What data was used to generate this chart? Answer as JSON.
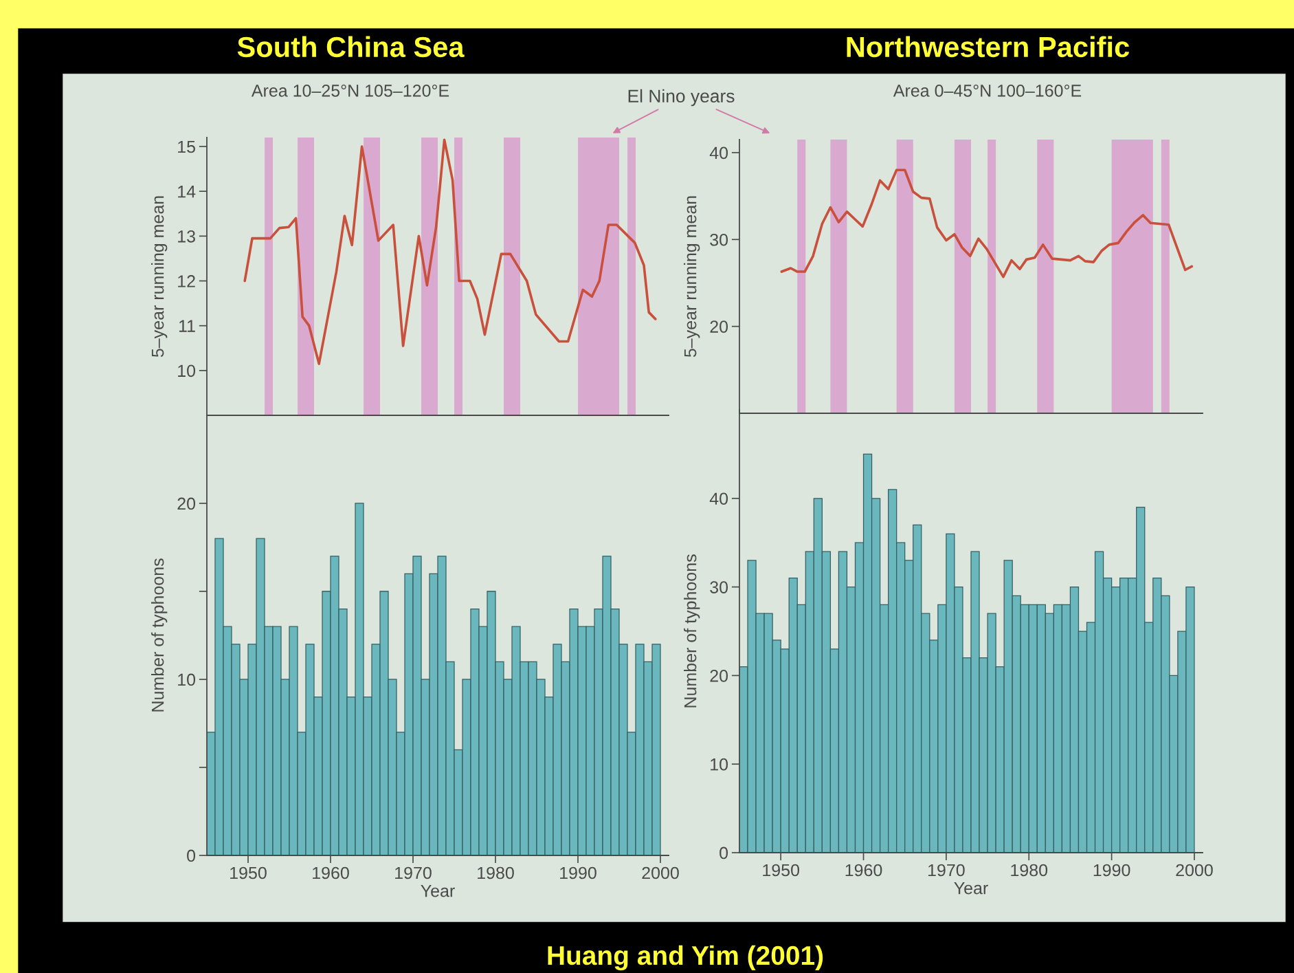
{
  "chart_data": [
    {
      "type": "line",
      "title": "South China Sea",
      "subtitle": "Area 10–25°N 105–120°E",
      "ylabel": "5–year running mean",
      "x": [
        1949.6,
        1950.5,
        1952.7,
        1953.8,
        1954.9,
        1955.8,
        1956.6,
        1957.4,
        1958.6,
        1960.7,
        1961.7,
        1962.6,
        1963.8,
        1965.8,
        1967.6,
        1968.8,
        1970.7,
        1971.7,
        1972.8,
        1973.8,
        1974.8,
        1975.6,
        1976.9,
        1977.8,
        1978.7,
        1980.7,
        1981.8,
        1983.8,
        1984.9,
        1987.7,
        1988.8,
        1990.6,
        1991.7,
        1992.6,
        1993.7,
        1994.7,
        1996.9,
        1998.0,
        1998.6,
        1999.4
      ],
      "series": [
        {
          "color": "#c8503c",
          "values": [
            12.0,
            12.95,
            12.95,
            13.18,
            13.2,
            13.4,
            11.2,
            11.0,
            10.15,
            12.2,
            13.45,
            12.8,
            15.0,
            12.9,
            13.25,
            10.55,
            13.0,
            11.9,
            13.2,
            15.15,
            14.25,
            12.0,
            12.0,
            11.6,
            10.8,
            12.6,
            12.6,
            12.0,
            11.25,
            10.65,
            10.65,
            11.8,
            11.65,
            12.0,
            13.25,
            13.25,
            12.85,
            12.35,
            11.3,
            11.15
          ]
        }
      ],
      "xlim": [
        1945,
        2001
      ],
      "ylim": [
        9,
        15.2
      ],
      "yticks": [
        10,
        11,
        12,
        13,
        14,
        15
      ],
      "tick_labels": "y",
      "bands": [
        {
          "axis": "x",
          "from": 1952,
          "to": 1953,
          "color": "#d9a9cf"
        },
        {
          "axis": "x",
          "from": 1956,
          "to": 1958,
          "color": "#d9a9cf"
        },
        {
          "axis": "x",
          "from": 1964,
          "to": 1966,
          "color": "#d9a9cf"
        },
        {
          "axis": "x",
          "from": 1971,
          "to": 1973,
          "color": "#d9a9cf"
        },
        {
          "axis": "x",
          "from": 1975,
          "to": 1976,
          "color": "#d9a9cf"
        },
        {
          "axis": "x",
          "from": 1981,
          "to": 1983,
          "color": "#d9a9cf"
        },
        {
          "axis": "x",
          "from": 1990,
          "to": 1995,
          "color": "#d9a9cf"
        },
        {
          "axis": "x",
          "from": 1996,
          "to": 1997,
          "color": "#d9a9cf"
        }
      ],
      "annotations": [
        "El Nino years",
        "Huang and Yim (2001)"
      ]
    },
    {
      "type": "line",
      "title": "Northwestern Pacific",
      "subtitle": "Area 0–45°N 100–160°E",
      "ylabel": "5–year running mean",
      "x": [
        1950.1,
        1951.2,
        1952.0,
        1952.9,
        1953.9,
        1955.0,
        1956.0,
        1957.0,
        1958.0,
        1959.0,
        1959.9,
        1961.0,
        1962.0,
        1963.0,
        1964.0,
        1965.0,
        1966.0,
        1967.0,
        1968.0,
        1968.9,
        1970.0,
        1971.0,
        1971.9,
        1972.9,
        1973.9,
        1974.9,
        1975.9,
        1976.9,
        1977.9,
        1978.9,
        1979.7,
        1980.7,
        1981.7,
        1982.8,
        1985.0,
        1986.0,
        1986.8,
        1987.8,
        1988.8,
        1989.7,
        1990.8,
        1991.8,
        1992.8,
        1993.8,
        1994.7,
        1996.9,
        1998.9,
        1999.7
      ],
      "series": [
        {
          "color": "#c8503c",
          "values": [
            26.3,
            26.7,
            26.3,
            26.3,
            28.1,
            31.8,
            33.7,
            32.0,
            33.2,
            32.3,
            31.5,
            34.1,
            36.8,
            35.8,
            38.0,
            38.0,
            35.5,
            34.8,
            34.7,
            31.4,
            29.9,
            30.6,
            29.1,
            28.1,
            30.1,
            28.9,
            27.3,
            25.7,
            27.6,
            26.6,
            27.7,
            27.9,
            29.4,
            27.8,
            27.6,
            28.1,
            27.5,
            27.4,
            28.7,
            29.4,
            29.6,
            30.9,
            32.0,
            32.8,
            31.9,
            31.7,
            26.5,
            26.9
          ]
        }
      ],
      "xlim": [
        1945,
        2001
      ],
      "ylim": [
        10,
        41.5
      ],
      "yticks": [
        20,
        30,
        40
      ],
      "tick_labels": "y",
      "bands": [
        {
          "axis": "x",
          "from": 1952,
          "to": 1953,
          "color": "#d9a9cf"
        },
        {
          "axis": "x",
          "from": 1956,
          "to": 1958,
          "color": "#d9a9cf"
        },
        {
          "axis": "x",
          "from": 1964,
          "to": 1966,
          "color": "#d9a9cf"
        },
        {
          "axis": "x",
          "from": 1971,
          "to": 1973,
          "color": "#d9a9cf"
        },
        {
          "axis": "x",
          "from": 1975,
          "to": 1976,
          "color": "#d9a9cf"
        },
        {
          "axis": "x",
          "from": 1981,
          "to": 1983,
          "color": "#d9a9cf"
        },
        {
          "axis": "x",
          "from": 1990,
          "to": 1995,
          "color": "#d9a9cf"
        },
        {
          "axis": "x",
          "from": 1996,
          "to": 1997,
          "color": "#d9a9cf"
        }
      ]
    },
    {
      "type": "histogram",
      "xlabel": "Year",
      "ylabel": "Number of typhoons",
      "color": "#6ab7bd",
      "bins": [
        1945,
        1946,
        1947,
        1948,
        1949,
        1950,
        1951,
        1952,
        1953,
        1954,
        1955,
        1956,
        1957,
        1958,
        1959,
        1960,
        1961,
        1962,
        1963,
        1964,
        1965,
        1966,
        1967,
        1968,
        1969,
        1970,
        1971,
        1972,
        1973,
        1974,
        1975,
        1976,
        1977,
        1978,
        1979,
        1980,
        1981,
        1982,
        1983,
        1984,
        1985,
        1986,
        1987,
        1988,
        1989,
        1990,
        1991,
        1992,
        1993,
        1994,
        1995,
        1996,
        1997,
        1998,
        1999,
        2000
      ],
      "values": [
        7,
        18,
        13,
        12,
        10,
        12,
        18,
        13,
        13,
        10,
        13,
        7,
        12,
        9,
        15,
        17,
        14,
        9,
        20,
        9,
        12,
        15,
        10,
        7,
        16,
        17,
        10,
        16,
        17,
        11,
        6,
        10,
        14,
        13,
        15,
        11,
        10,
        13,
        11,
        11,
        10,
        9,
        12,
        11,
        14,
        13,
        13,
        14,
        17,
        14,
        12,
        7,
        12,
        11,
        12
      ],
      "xlim": [
        1945,
        2001
      ],
      "xticks": [
        1950,
        1960,
        1970,
        1980,
        1990,
        2000
      ],
      "ylim": [
        0,
        25
      ],
      "yticks": [
        0,
        {
          "value": 5,
          "label": null
        },
        10,
        {
          "value": 15,
          "label": null
        },
        20
      ]
    },
    {
      "type": "histogram",
      "xlabel": "Year",
      "ylabel": "Number of typhoons",
      "color": "#6ab7bd",
      "bins": [
        1945,
        1946,
        1947,
        1948,
        1949,
        1950,
        1951,
        1952,
        1953,
        1954,
        1955,
        1956,
        1957,
        1958,
        1959,
        1960,
        1961,
        1962,
        1963,
        1964,
        1965,
        1966,
        1967,
        1968,
        1969,
        1970,
        1971,
        1972,
        1973,
        1974,
        1975,
        1976,
        1977,
        1978,
        1979,
        1980,
        1981,
        1982,
        1983,
        1984,
        1985,
        1986,
        1987,
        1988,
        1989,
        1990,
        1991,
        1992,
        1993,
        1994,
        1995,
        1996,
        1997,
        1998,
        1999,
        2000
      ],
      "values": [
        21,
        33,
        27,
        27,
        24,
        23,
        31,
        28,
        34,
        40,
        34,
        23,
        34,
        30,
        35,
        45,
        40,
        28,
        41,
        35,
        33,
        37,
        27,
        24,
        28,
        36,
        30,
        22,
        34,
        22,
        27,
        21,
        33,
        29,
        28,
        28,
        28,
        27,
        28,
        28,
        30,
        25,
        26,
        34,
        31,
        30,
        31,
        31,
        39,
        26,
        31,
        29,
        20,
        25,
        30
      ],
      "xlim": [
        1945,
        2001
      ],
      "xticks": [
        1950,
        1960,
        1970,
        1980,
        1990,
        2000
      ],
      "ylim": [
        0,
        50
      ],
      "yticks": [
        0,
        10,
        20,
        30,
        40
      ]
    }
  ]
}
